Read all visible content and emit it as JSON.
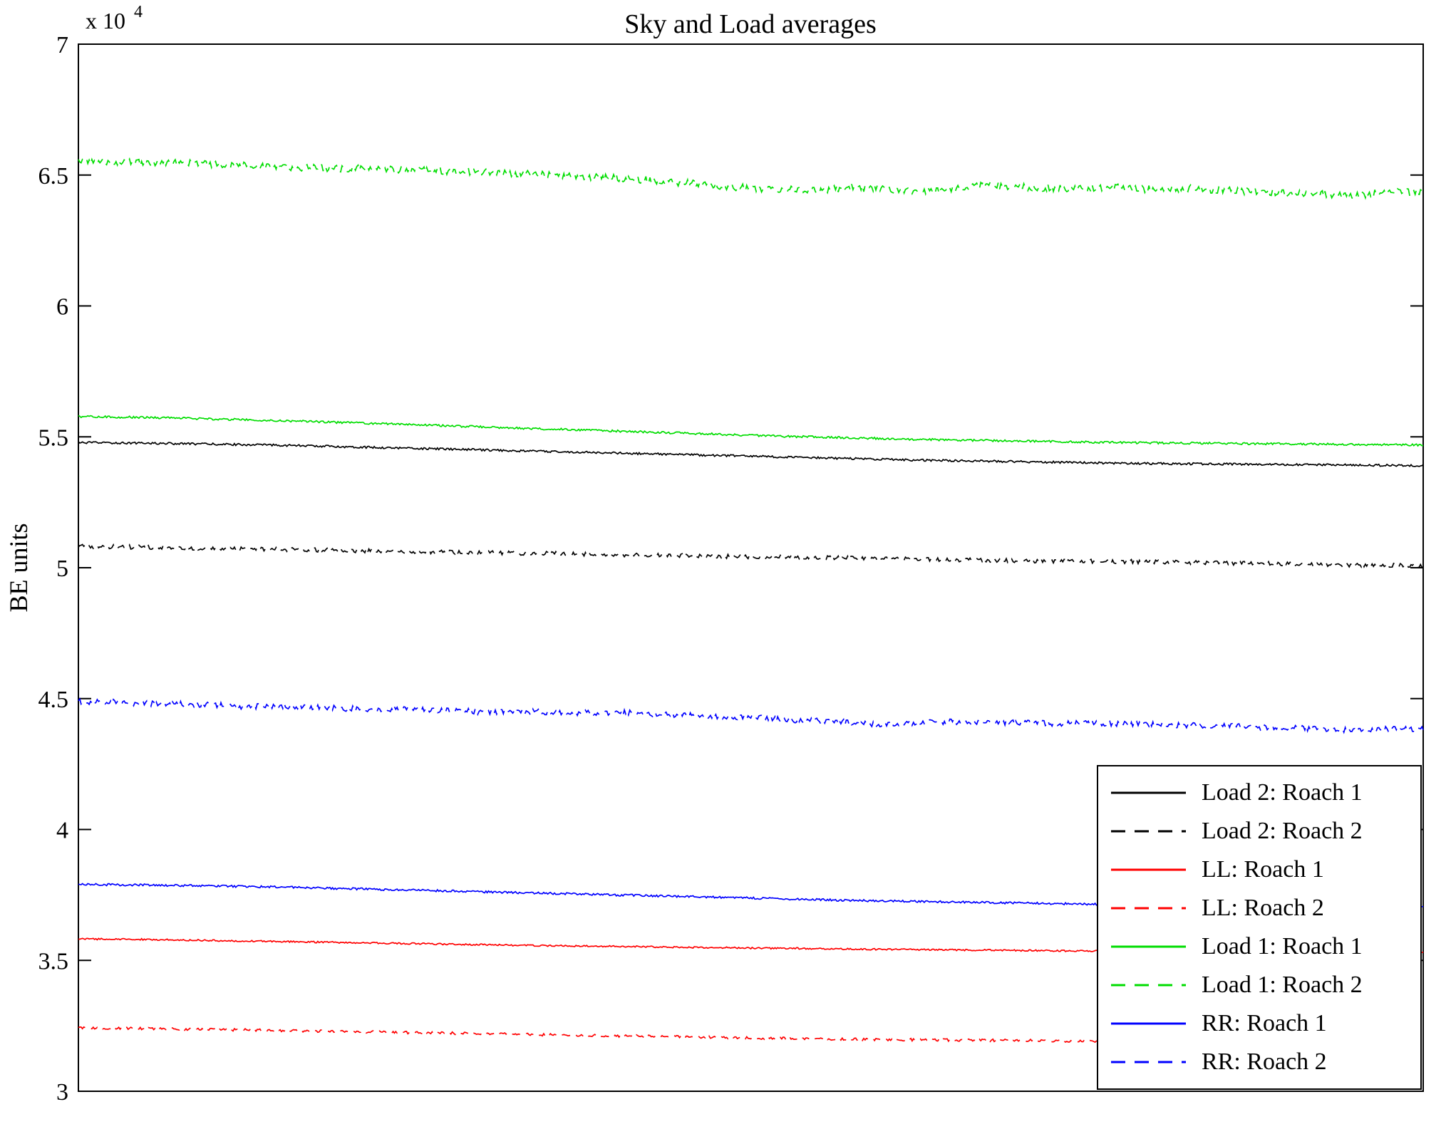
{
  "chart_data": {
    "type": "line",
    "title": "Sky and Load averages",
    "ylabel": "BE units",
    "xlabel": "",
    "y_scale_label": "x 10",
    "y_scale_exponent": "4",
    "ylim": [
      3,
      7
    ],
    "yticks": [
      7,
      6.5,
      6,
      5.5,
      5,
      4.5,
      4,
      3.5,
      3
    ],
    "ytick_labels": [
      "7",
      "6.5",
      "6",
      "5.5",
      "5",
      "4.5",
      "4",
      "3.5",
      "3"
    ],
    "grid": false,
    "legend_position": "bottom-right",
    "axis_color": "#000000",
    "background_color": "#ffffff",
    "series": [
      {
        "name": "Load 2: Roach 1",
        "color": "#000000",
        "style": "solid",
        "noise": 0.004,
        "values": [
          5.478,
          5.477,
          5.476,
          5.474,
          5.472,
          5.47,
          5.468,
          5.465,
          5.462,
          5.459,
          5.456,
          5.453,
          5.45,
          5.447,
          5.444,
          5.441,
          5.438,
          5.435,
          5.432,
          5.429,
          5.426,
          5.423,
          5.42,
          5.417,
          5.414,
          5.411,
          5.409,
          5.407,
          5.405,
          5.403,
          5.401,
          5.399,
          5.398,
          5.397,
          5.396,
          5.395,
          5.394,
          5.393,
          5.392,
          5.391,
          5.39
        ]
      },
      {
        "name": "Load 2: Roach 2",
        "color": "#000000",
        "style": "dashed",
        "noise": 0.008,
        "values": [
          5.082,
          5.08,
          5.078,
          5.076,
          5.074,
          5.072,
          5.07,
          5.068,
          5.066,
          5.064,
          5.062,
          5.06,
          5.058,
          5.056,
          5.054,
          5.052,
          5.05,
          5.048,
          5.046,
          5.044,
          5.042,
          5.04,
          5.038,
          5.036,
          5.034,
          5.032,
          5.03,
          5.028,
          5.027,
          5.026,
          5.025,
          5.024,
          5.022,
          5.02,
          5.018,
          5.016,
          5.014,
          5.012,
          5.01,
          5.009,
          5.008
        ]
      },
      {
        "name": "LL: Roach 1",
        "color": "#ff0000",
        "style": "solid",
        "noise": 0.003,
        "values": [
          3.582,
          3.581,
          3.58,
          3.578,
          3.576,
          3.574,
          3.572,
          3.57,
          3.568,
          3.566,
          3.564,
          3.562,
          3.56,
          3.558,
          3.556,
          3.555,
          3.553,
          3.552,
          3.55,
          3.549,
          3.547,
          3.546,
          3.545,
          3.543,
          3.542,
          3.541,
          3.54,
          3.539,
          3.538,
          3.537,
          3.536,
          3.535,
          3.534,
          3.534,
          3.533,
          3.533,
          3.532,
          3.532,
          3.531,
          3.531,
          3.53
        ]
      },
      {
        "name": "LL: Roach 2",
        "color": "#ff0000",
        "style": "dashed",
        "noise": 0.005,
        "values": [
          3.242,
          3.241,
          3.24,
          3.238,
          3.236,
          3.234,
          3.232,
          3.23,
          3.228,
          3.226,
          3.224,
          3.222,
          3.22,
          3.218,
          3.216,
          3.214,
          3.212,
          3.21,
          3.208,
          3.206,
          3.204,
          3.202,
          3.2,
          3.199,
          3.198,
          3.197,
          3.196,
          3.195,
          3.194,
          3.193,
          3.192,
          3.191,
          3.19,
          3.19,
          3.189,
          3.189,
          3.188,
          3.188,
          3.187,
          3.187,
          3.186
        ]
      },
      {
        "name": "Load 1: Roach 1",
        "color": "#00dd00",
        "style": "solid",
        "noise": 0.004,
        "values": [
          5.578,
          5.576,
          5.574,
          5.571,
          5.568,
          5.565,
          5.562,
          5.558,
          5.554,
          5.55,
          5.546,
          5.542,
          5.538,
          5.534,
          5.53,
          5.526,
          5.522,
          5.518,
          5.514,
          5.51,
          5.506,
          5.502,
          5.499,
          5.496,
          5.493,
          5.49,
          5.488,
          5.486,
          5.484,
          5.482,
          5.48,
          5.478,
          5.477,
          5.476,
          5.475,
          5.474,
          5.473,
          5.472,
          5.471,
          5.47,
          5.469
        ]
      },
      {
        "name": "Load 1: Roach 2",
        "color": "#00dd00",
        "style": "dashed",
        "noise": 0.014,
        "values": [
          6.555,
          6.55,
          6.545,
          6.548,
          6.542,
          6.535,
          6.53,
          6.528,
          6.525,
          6.522,
          6.52,
          6.515,
          6.512,
          6.505,
          6.5,
          6.495,
          6.49,
          6.48,
          6.47,
          6.46,
          6.45,
          6.445,
          6.44,
          6.452,
          6.445,
          6.438,
          6.445,
          6.462,
          6.455,
          6.45,
          6.448,
          6.452,
          6.445,
          6.45,
          6.442,
          6.438,
          6.432,
          6.428,
          6.42,
          6.44,
          6.43
        ]
      },
      {
        "name": "RR: Roach 1",
        "color": "#0000ff",
        "style": "solid",
        "noise": 0.004,
        "values": [
          3.79,
          3.789,
          3.788,
          3.786,
          3.784,
          3.782,
          3.78,
          3.777,
          3.774,
          3.771,
          3.768,
          3.765,
          3.762,
          3.759,
          3.756,
          3.753,
          3.75,
          3.747,
          3.744,
          3.741,
          3.738,
          3.735,
          3.732,
          3.729,
          3.727,
          3.725,
          3.723,
          3.721,
          3.719,
          3.717,
          3.715,
          3.713,
          3.712,
          3.711,
          3.71,
          3.709,
          3.708,
          3.707,
          3.706,
          3.705,
          3.704
        ]
      },
      {
        "name": "RR: Roach 2",
        "color": "#0000ff",
        "style": "dashed",
        "noise": 0.011,
        "values": [
          4.49,
          4.486,
          4.482,
          4.48,
          4.475,
          4.47,
          4.472,
          4.468,
          4.462,
          4.458,
          4.46,
          4.455,
          4.45,
          4.452,
          4.448,
          4.445,
          4.448,
          4.442,
          4.438,
          4.432,
          4.428,
          4.42,
          4.415,
          4.408,
          4.4,
          4.408,
          4.412,
          4.408,
          4.41,
          4.405,
          4.408,
          4.404,
          4.4,
          4.398,
          4.396,
          4.39,
          4.388,
          4.385,
          4.38,
          4.385,
          4.382
        ]
      }
    ]
  }
}
